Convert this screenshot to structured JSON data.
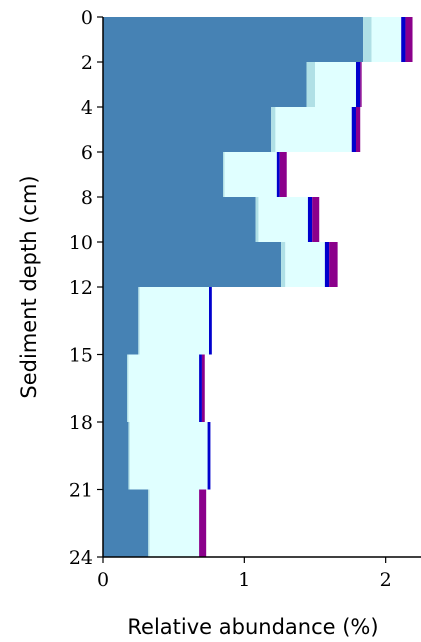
{
  "chart_data": {
    "type": "bar",
    "orientation": "horizontal-stacked",
    "xlabel": "Relative abundance (%)",
    "ylabel": "Sediment depth (cm)",
    "xlim": [
      0,
      2.25
    ],
    "ylim": [
      24,
      0
    ],
    "xticks": [
      0,
      1,
      2
    ],
    "yticks": [
      0,
      2,
      4,
      6,
      8,
      10,
      12,
      15,
      18,
      21,
      24
    ],
    "grid": false,
    "colors": [
      "#4682b4",
      "#b0e0e6",
      "#e0ffff",
      "#0000cd",
      "#8b008b"
    ],
    "series": [
      {
        "values": [
          1.84,
          1.44,
          1.19,
          0.85,
          1.08,
          1.26,
          0.25,
          0.17,
          0.18,
          0.32
        ]
      },
      {
        "values": [
          0.06,
          0.06,
          0.03,
          0.01,
          0.02,
          0.03,
          0.01,
          0.01,
          0.01,
          0.01
        ]
      },
      {
        "values": [
          0.21,
          0.29,
          0.54,
          0.37,
          0.35,
          0.28,
          0.49,
          0.5,
          0.55,
          0.35
        ]
      },
      {
        "values": [
          0.03,
          0.03,
          0.03,
          0.02,
          0.03,
          0.03,
          0.02,
          0.02,
          0.02,
          0.0
        ]
      },
      {
        "values": [
          0.05,
          0.01,
          0.03,
          0.05,
          0.05,
          0.06,
          0.0,
          0.02,
          0.0,
          0.05
        ]
      }
    ],
    "intervals": [
      [
        0,
        2
      ],
      [
        2,
        4
      ],
      [
        4,
        6
      ],
      [
        6,
        8
      ],
      [
        8,
        10
      ],
      [
        10,
        12
      ],
      [
        12,
        15
      ],
      [
        15,
        18
      ],
      [
        18,
        21
      ],
      [
        21,
        24
      ]
    ]
  }
}
